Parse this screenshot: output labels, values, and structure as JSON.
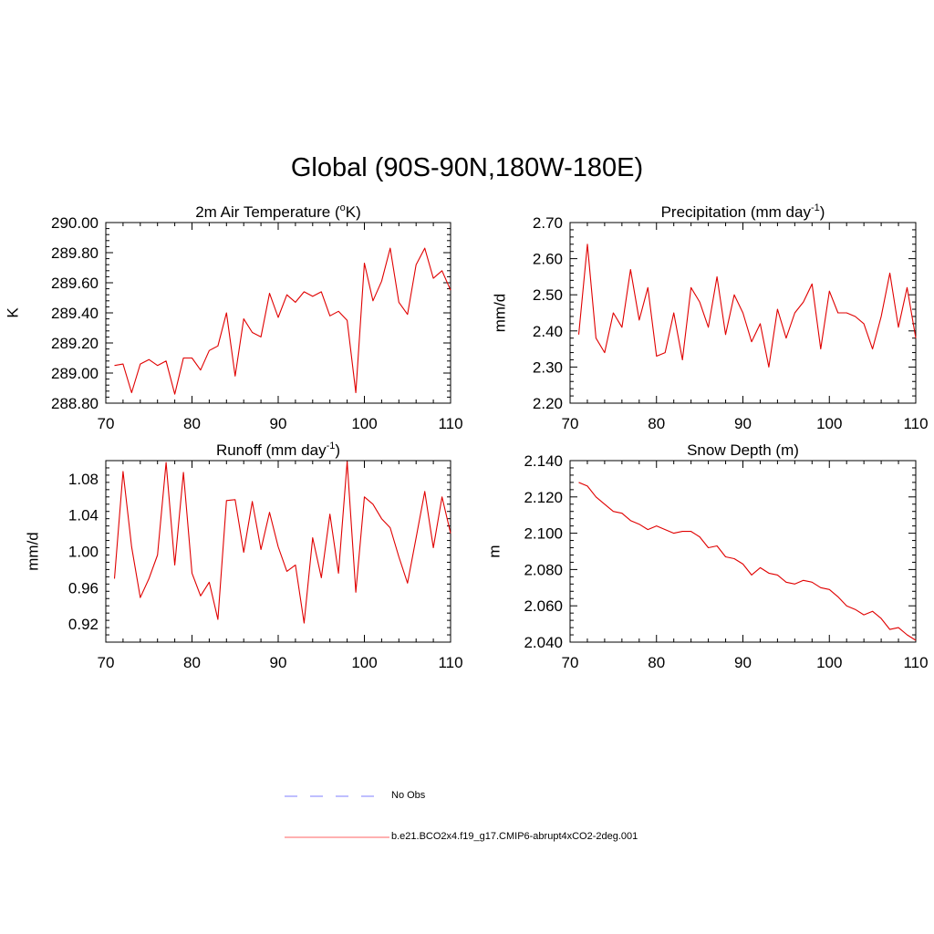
{
  "title": "Global (90S-90N,180W-180E)",
  "chart_data": [
    {
      "type": "line",
      "title_main": "2m Air Temperature (",
      "title_sup": "o",
      "title_tail": "K)",
      "ylabel": "K",
      "xlabel": "",
      "xlim": [
        70,
        110
      ],
      "ylim": [
        288.8,
        290.0
      ],
      "xticks": [
        "70",
        "80",
        "90",
        "100",
        "110"
      ],
      "xtick_values": [
        70,
        80,
        90,
        100,
        110
      ],
      "yticks": [
        "288.80",
        "289.00",
        "289.20",
        "289.40",
        "289.60",
        "289.80",
        "290.00"
      ],
      "ytick_values": [
        288.8,
        289.0,
        289.2,
        289.4,
        289.6,
        289.8,
        290.0
      ],
      "series": [
        {
          "name": "b.e21.BCO2x4.f19_g17.CMIP6-abrupt4xCO2-2deg.001",
          "x": [
            71,
            72,
            73,
            74,
            75,
            76,
            77,
            78,
            79,
            80,
            81,
            82,
            83,
            84,
            85,
            86,
            87,
            88,
            89,
            90,
            91,
            92,
            93,
            94,
            95,
            96,
            97,
            98,
            99,
            100,
            101,
            102,
            103,
            104,
            105,
            106,
            107,
            108,
            109,
            110
          ],
          "values": [
            289.05,
            289.06,
            288.87,
            289.06,
            289.09,
            289.05,
            289.08,
            288.86,
            289.1,
            289.1,
            289.02,
            289.15,
            289.18,
            289.4,
            288.98,
            289.36,
            289.27,
            289.24,
            289.53,
            289.37,
            289.52,
            289.47,
            289.54,
            289.51,
            289.54,
            289.38,
            289.41,
            289.35,
            288.87,
            289.73,
            289.48,
            289.61,
            289.83,
            289.47,
            289.39,
            289.72,
            289.83,
            289.63,
            289.68,
            289.55
          ]
        }
      ]
    },
    {
      "type": "line",
      "title_main": "Precipitation (mm day",
      "title_sup": "-1",
      "title_tail": ")",
      "ylabel": "mm/d",
      "xlabel": "",
      "xlim": [
        70,
        110
      ],
      "ylim": [
        2.2,
        2.7
      ],
      "xticks": [
        "70",
        "80",
        "90",
        "100",
        "110"
      ],
      "xtick_values": [
        70,
        80,
        90,
        100,
        110
      ],
      "yticks": [
        "2.20",
        "2.30",
        "2.40",
        "2.50",
        "2.60",
        "2.70"
      ],
      "ytick_values": [
        2.2,
        2.3,
        2.4,
        2.5,
        2.6,
        2.7
      ],
      "series": [
        {
          "name": "b.e21.BCO2x4.f19_g17.CMIP6-abrupt4xCO2-2deg.001",
          "x": [
            71,
            72,
            73,
            74,
            75,
            76,
            77,
            78,
            79,
            80,
            81,
            82,
            83,
            84,
            85,
            86,
            87,
            88,
            89,
            90,
            91,
            92,
            93,
            94,
            95,
            96,
            97,
            98,
            99,
            100,
            101,
            102,
            103,
            104,
            105,
            106,
            107,
            108,
            109,
            110
          ],
          "values": [
            2.39,
            2.64,
            2.38,
            2.34,
            2.45,
            2.41,
            2.57,
            2.43,
            2.52,
            2.33,
            2.34,
            2.45,
            2.32,
            2.52,
            2.48,
            2.41,
            2.55,
            2.39,
            2.5,
            2.45,
            2.37,
            2.42,
            2.3,
            2.46,
            2.38,
            2.45,
            2.48,
            2.53,
            2.35,
            2.51,
            2.45,
            2.45,
            2.44,
            2.42,
            2.35,
            2.44,
            2.56,
            2.41,
            2.52,
            2.38
          ]
        }
      ]
    },
    {
      "type": "line",
      "title_main": "Runoff (mm day",
      "title_sup": "-1",
      "title_tail": ")",
      "ylabel": "mm/d",
      "xlabel": "",
      "xlim": [
        70,
        110
      ],
      "ylim": [
        0.9,
        1.1
      ],
      "xticks": [
        "70",
        "80",
        "90",
        "100",
        "110"
      ],
      "xtick_values": [
        70,
        80,
        90,
        100,
        110
      ],
      "yticks": [
        "0.92",
        "0.96",
        "1.00",
        "1.04",
        "1.08"
      ],
      "ytick_values": [
        0.92,
        0.96,
        1.0,
        1.04,
        1.08
      ],
      "series": [
        {
          "name": "b.e21.BCO2x4.f19_g17.CMIP6-abrupt4xCO2-2deg.001",
          "x": [
            71,
            72,
            73,
            74,
            75,
            76,
            77,
            78,
            79,
            80,
            81,
            82,
            83,
            84,
            85,
            86,
            87,
            88,
            89,
            90,
            91,
            92,
            93,
            94,
            95,
            96,
            97,
            98,
            99,
            100,
            101,
            102,
            103,
            104,
            105,
            106,
            107,
            108,
            109,
            110
          ],
          "values": [
            0.97,
            1.088,
            1.005,
            0.949,
            0.97,
            0.996,
            1.098,
            0.985,
            1.087,
            0.976,
            0.951,
            0.966,
            0.925,
            1.056,
            1.057,
            0.999,
            1.055,
            1.002,
            1.043,
            1.005,
            0.978,
            0.985,
            0.921,
            1.015,
            0.971,
            1.041,
            0.976,
            1.099,
            0.955,
            1.06,
            1.052,
            1.036,
            1.026,
            0.994,
            0.965,
            1.015,
            1.066,
            1.004,
            1.06,
            1.02
          ]
        }
      ]
    },
    {
      "type": "line",
      "title_main": "Snow Depth (m)",
      "title_sup": "",
      "title_tail": "",
      "ylabel": "m",
      "xlabel": "",
      "xlim": [
        70,
        110
      ],
      "ylim": [
        2.04,
        2.14
      ],
      "xticks": [
        "70",
        "80",
        "90",
        "100",
        "110"
      ],
      "xtick_values": [
        70,
        80,
        90,
        100,
        110
      ],
      "yticks": [
        "2.040",
        "2.060",
        "2.080",
        "2.100",
        "2.120",
        "2.140"
      ],
      "ytick_values": [
        2.04,
        2.06,
        2.08,
        2.1,
        2.12,
        2.14
      ],
      "series": [
        {
          "name": "b.e21.BCO2x4.f19_g17.CMIP6-abrupt4xCO2-2deg.001",
          "x": [
            71,
            72,
            73,
            74,
            75,
            76,
            77,
            78,
            79,
            80,
            81,
            82,
            83,
            84,
            85,
            86,
            87,
            88,
            89,
            90,
            91,
            92,
            93,
            94,
            95,
            96,
            97,
            98,
            99,
            100,
            101,
            102,
            103,
            104,
            105,
            106,
            107,
            108,
            109,
            110
          ],
          "values": [
            2.128,
            2.126,
            2.12,
            2.116,
            2.112,
            2.111,
            2.107,
            2.105,
            2.102,
            2.104,
            2.102,
            2.1,
            2.101,
            2.101,
            2.098,
            2.092,
            2.093,
            2.087,
            2.086,
            2.083,
            2.077,
            2.081,
            2.078,
            2.077,
            2.073,
            2.072,
            2.074,
            2.073,
            2.07,
            2.069,
            2.065,
            2.06,
            2.058,
            2.055,
            2.057,
            2.053,
            2.047,
            2.048,
            2.044,
            2.041
          ]
        }
      ]
    }
  ],
  "legend": {
    "obs_label": "No Obs",
    "model_label": "b.e21.BCO2x4.f19_g17.CMIP6-abrupt4xCO2-2deg.001",
    "obs_color": "#9999ff",
    "model_color": "#ff6666"
  },
  "colors": {
    "line": "#e00000",
    "axis": "#000000"
  }
}
